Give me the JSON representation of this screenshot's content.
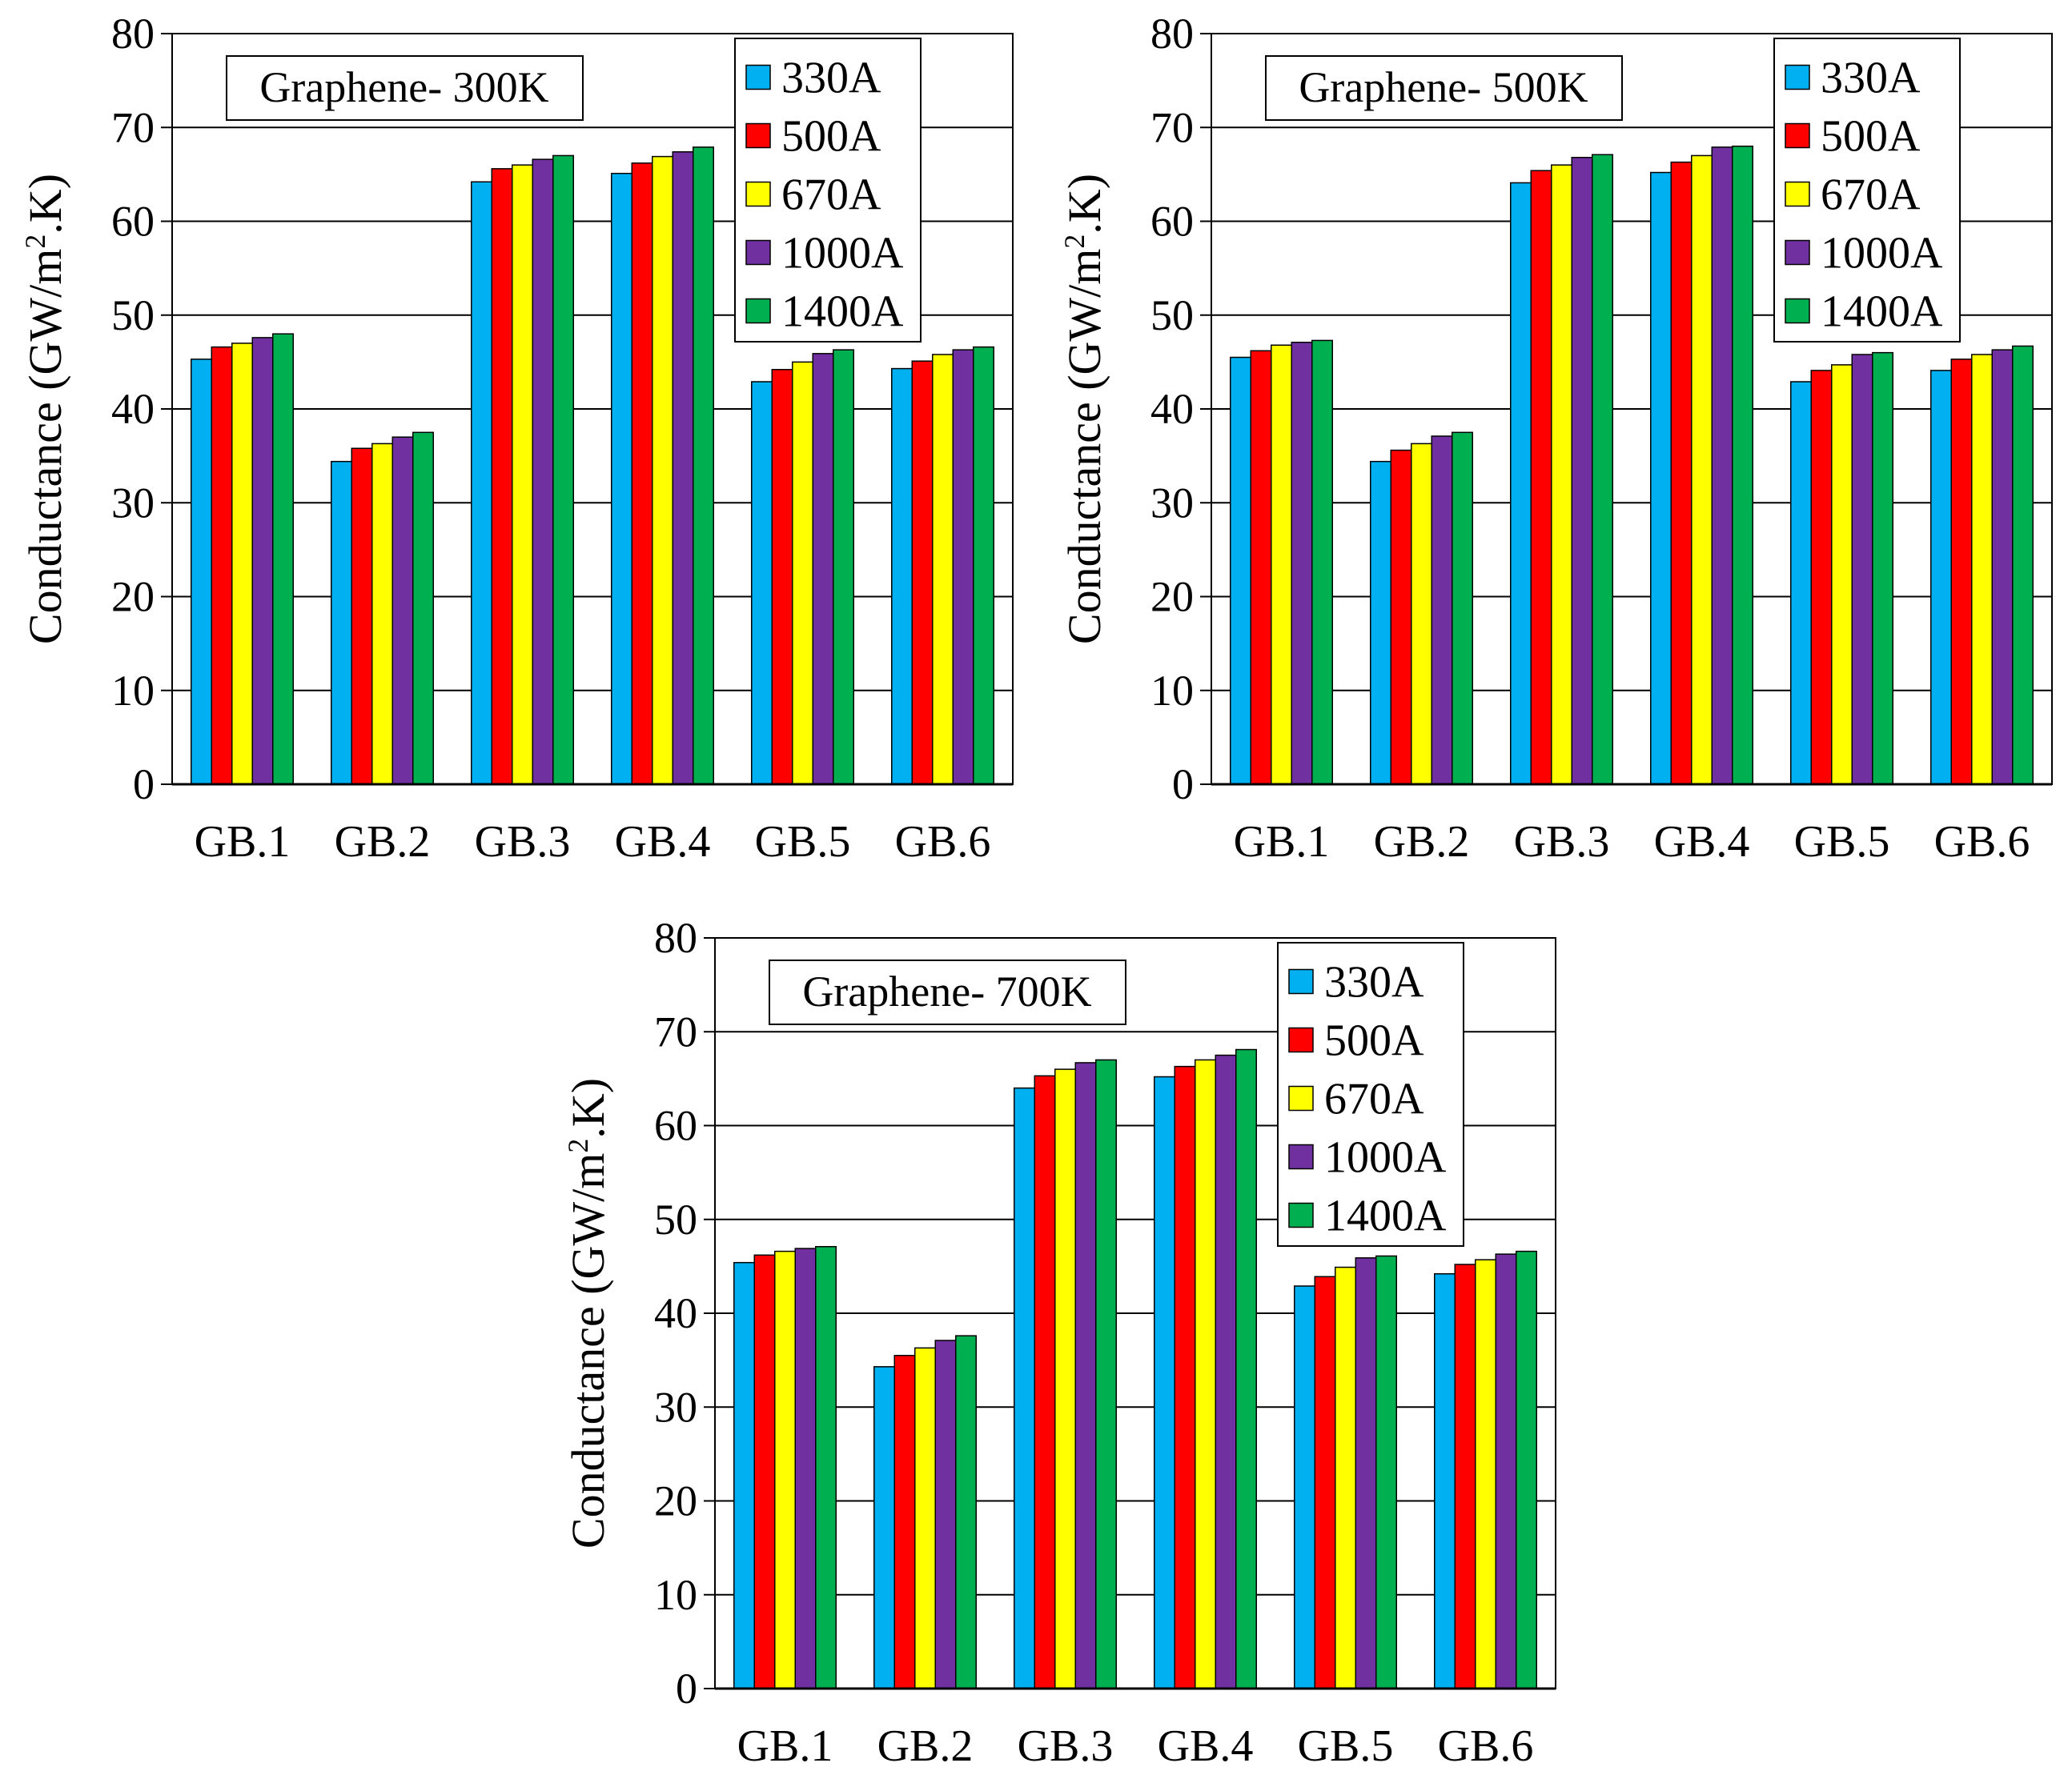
{
  "chart_data": [
    {
      "type": "bar",
      "title": "Graphene- 300K",
      "ylabel": "Conductance (GW/m2.K)",
      "ylabel_parts": [
        "Conductance (GW/m",
        "2",
        ".K)"
      ],
      "xlabel": "",
      "ylim": [
        0,
        80
      ],
      "yticks": [
        0,
        10,
        20,
        30,
        40,
        50,
        60,
        70,
        80
      ],
      "grid": true,
      "legend": "top-right",
      "categories": [
        "GB.1",
        "GB.2",
        "GB.3",
        "GB.4",
        "GB.5",
        "GB.6"
      ],
      "series": [
        {
          "name": "330A",
          "color": "#00b0f0",
          "values": [
            45.3,
            34.4,
            64.2,
            65.1,
            42.9,
            44.3
          ]
        },
        {
          "name": "500A",
          "color": "#ff0000",
          "values": [
            46.6,
            35.8,
            65.6,
            66.2,
            44.2,
            45.1
          ]
        },
        {
          "name": "670A",
          "color": "#ffff00",
          "values": [
            47.0,
            36.3,
            66.0,
            66.9,
            45.0,
            45.8
          ]
        },
        {
          "name": "1000A",
          "color": "#7030a0",
          "values": [
            47.6,
            37.0,
            66.6,
            67.4,
            45.9,
            46.3
          ]
        },
        {
          "name": "1400A",
          "color": "#00b050",
          "values": [
            48.0,
            37.5,
            67.0,
            67.9,
            46.3,
            46.6
          ]
        }
      ]
    },
    {
      "type": "bar",
      "title": "Graphene- 500K",
      "ylabel": "Conductance (GW/m2.K)",
      "ylabel_parts": [
        "Conductance (GW/m",
        "2",
        ".K)"
      ],
      "xlabel": "",
      "ylim": [
        0,
        80
      ],
      "yticks": [
        0,
        10,
        20,
        30,
        40,
        50,
        60,
        70,
        80
      ],
      "grid": true,
      "legend": "top-right",
      "categories": [
        "GB.1",
        "GB.2",
        "GB.3",
        "GB.4",
        "GB.5",
        "GB.6"
      ],
      "series": [
        {
          "name": "330A",
          "color": "#00b0f0",
          "values": [
            45.5,
            34.4,
            64.1,
            65.2,
            42.9,
            44.1
          ]
        },
        {
          "name": "500A",
          "color": "#ff0000",
          "values": [
            46.2,
            35.6,
            65.4,
            66.3,
            44.1,
            45.3
          ]
        },
        {
          "name": "670A",
          "color": "#ffff00",
          "values": [
            46.8,
            36.3,
            66.0,
            67.0,
            44.7,
            45.8
          ]
        },
        {
          "name": "1000A",
          "color": "#7030a0",
          "values": [
            47.1,
            37.1,
            66.8,
            67.9,
            45.8,
            46.3
          ]
        },
        {
          "name": "1400A",
          "color": "#00b050",
          "values": [
            47.3,
            37.5,
            67.1,
            68.0,
            46.0,
            46.7
          ]
        }
      ]
    },
    {
      "type": "bar",
      "title": "Graphene- 700K",
      "ylabel": "Conductance (GW/m2.K)",
      "ylabel_parts": [
        "Conductance (GW/m",
        "2",
        ".K)"
      ],
      "xlabel": "",
      "ylim": [
        0,
        80
      ],
      "yticks": [
        0,
        10,
        20,
        30,
        40,
        50,
        60,
        70,
        80
      ],
      "grid": true,
      "legend": "top-right",
      "categories": [
        "GB.1",
        "GB.2",
        "GB.3",
        "GB.4",
        "GB.5",
        "GB.6"
      ],
      "series": [
        {
          "name": "330A",
          "color": "#00b0f0",
          "values": [
            45.4,
            34.3,
            64.0,
            65.2,
            42.9,
            44.2
          ]
        },
        {
          "name": "500A",
          "color": "#ff0000",
          "values": [
            46.2,
            35.5,
            65.3,
            66.3,
            43.9,
            45.2
          ]
        },
        {
          "name": "670A",
          "color": "#ffff00",
          "values": [
            46.6,
            36.3,
            66.0,
            67.0,
            44.9,
            45.7
          ]
        },
        {
          "name": "1000A",
          "color": "#7030a0",
          "values": [
            46.9,
            37.1,
            66.7,
            67.5,
            45.9,
            46.3
          ]
        },
        {
          "name": "1400A",
          "color": "#00b050",
          "values": [
            47.1,
            37.6,
            67.0,
            68.1,
            46.1,
            46.6
          ]
        }
      ]
    }
  ]
}
